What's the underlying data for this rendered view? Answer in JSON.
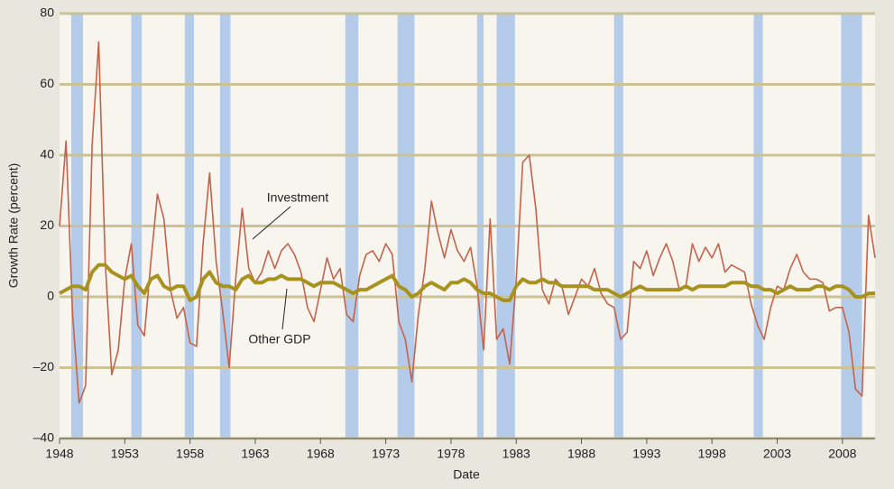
{
  "chart_data": {
    "type": "line",
    "xlabel": "Date",
    "ylabel": "Growth Rate (percent)",
    "xlim": [
      1948,
      2010.5
    ],
    "ylim": [
      -40,
      80
    ],
    "xticks": [
      1948,
      1953,
      1958,
      1963,
      1968,
      1973,
      1978,
      1983,
      1988,
      1993,
      1998,
      2003,
      2008
    ],
    "yticks": [
      {
        "value": -40,
        "label": "–40"
      },
      {
        "value": -20,
        "label": "–20"
      },
      0,
      20,
      40,
      60,
      80
    ],
    "grid": true,
    "recessions": [
      [
        1948.9,
        1949.8
      ],
      [
        1953.5,
        1954.3
      ],
      [
        1957.6,
        1958.3
      ],
      [
        1960.3,
        1961.1
      ],
      [
        1969.9,
        1970.9
      ],
      [
        1973.9,
        1975.2
      ],
      [
        1980.0,
        1980.5
      ],
      [
        1981.5,
        1982.9
      ],
      [
        1990.5,
        1991.2
      ],
      [
        2001.2,
        2001.9
      ],
      [
        2007.9,
        2009.5
      ]
    ],
    "recession_color": "#b4cce9",
    "x": [
      1948.0,
      1948.5,
      1949.0,
      1949.5,
      1950.0,
      1950.5,
      1951.0,
      1951.5,
      1952.0,
      1952.5,
      1953.0,
      1953.5,
      1954.0,
      1954.5,
      1955.0,
      1955.5,
      1956.0,
      1956.5,
      1957.0,
      1957.5,
      1958.0,
      1958.5,
      1959.0,
      1959.5,
      1960.0,
      1960.5,
      1961.0,
      1961.5,
      1962.0,
      1962.5,
      1963.0,
      1963.5,
      1964.0,
      1964.5,
      1965.0,
      1965.5,
      1966.0,
      1966.5,
      1967.0,
      1967.5,
      1968.0,
      1968.5,
      1969.0,
      1969.5,
      1970.0,
      1970.5,
      1971.0,
      1971.5,
      1972.0,
      1972.5,
      1973.0,
      1973.5,
      1974.0,
      1974.5,
      1975.0,
      1975.5,
      1976.0,
      1976.5,
      1977.0,
      1977.5,
      1978.0,
      1978.5,
      1979.0,
      1979.5,
      1980.0,
      1980.5,
      1981.0,
      1981.5,
      1982.0,
      1982.5,
      1983.0,
      1983.5,
      1984.0,
      1984.5,
      1985.0,
      1985.5,
      1986.0,
      1986.5,
      1987.0,
      1987.5,
      1988.0,
      1988.5,
      1989.0,
      1989.5,
      1990.0,
      1990.5,
      1991.0,
      1991.5,
      1992.0,
      1992.5,
      1993.0,
      1993.5,
      1994.0,
      1994.5,
      1995.0,
      1995.5,
      1996.0,
      1996.5,
      1997.0,
      1997.5,
      1998.0,
      1998.5,
      1999.0,
      1999.5,
      2000.0,
      2000.5,
      2001.0,
      2001.5,
      2002.0,
      2002.5,
      2003.0,
      2003.5,
      2004.0,
      2004.5,
      2005.0,
      2005.5,
      2006.0,
      2006.5,
      2007.0,
      2007.5,
      2008.0,
      2008.5,
      2009.0,
      2009.5,
      2010.0,
      2010.5
    ],
    "series": [
      {
        "name": "Investment",
        "color": "#c4634b",
        "width": 1.6,
        "values": [
          20,
          44,
          -5,
          -30,
          -25,
          43,
          72,
          10,
          -22,
          -15,
          5,
          15,
          -8,
          -11,
          10,
          29,
          22,
          2,
          -6,
          -3,
          -13,
          -14,
          15,
          35,
          10,
          -4,
          -20,
          5,
          25,
          8,
          4,
          7,
          13,
          8,
          13,
          15,
          12,
          7,
          -3,
          -7,
          2,
          11,
          5,
          8,
          -5,
          -7,
          6,
          12,
          13,
          10,
          15,
          12,
          -7,
          -12,
          -24,
          -5,
          8,
          27,
          18,
          11,
          19,
          13,
          10,
          14,
          3,
          -15,
          22,
          -12,
          -9,
          -19,
          5,
          38,
          40,
          25,
          2,
          -2,
          5,
          3,
          -5,
          0,
          5,
          3,
          8,
          1,
          -2,
          -3,
          -12,
          -10,
          10,
          8,
          13,
          6,
          11,
          15,
          10,
          2,
          3,
          15,
          10,
          14,
          11,
          15,
          7,
          9,
          8,
          7,
          -2,
          -8,
          -12,
          -3,
          3,
          2,
          8,
          12,
          7,
          5,
          5,
          4,
          -4,
          -3,
          -3,
          -10,
          -26,
          -28,
          23,
          11
        ]
      },
      {
        "name": "Other GDP",
        "color": "#a8921f",
        "width": 4,
        "values": [
          1,
          2,
          3,
          3,
          2,
          7,
          9,
          9,
          7,
          6,
          5,
          6,
          3,
          1,
          5,
          6,
          3,
          2,
          3,
          3,
          -1,
          0,
          5,
          7,
          4,
          3,
          3,
          2,
          5,
          6,
          4,
          4,
          5,
          5,
          6,
          5,
          5,
          5,
          4,
          3,
          4,
          4,
          4,
          3,
          2,
          1,
          2,
          2,
          3,
          4,
          5,
          6,
          3,
          2,
          0,
          1,
          3,
          4,
          3,
          2,
          4,
          4,
          5,
          4,
          2,
          1,
          1,
          0,
          -1,
          -1,
          3,
          5,
          4,
          4,
          5,
          4,
          4,
          3,
          3,
          3,
          3,
          3,
          2,
          2,
          2,
          1,
          0,
          1,
          2,
          3,
          2,
          2,
          2,
          2,
          2,
          2,
          3,
          2,
          3,
          3,
          3,
          3,
          3,
          4,
          4,
          4,
          3,
          3,
          2,
          2,
          1,
          2,
          3,
          2,
          2,
          2,
          3,
          3,
          2,
          3,
          3,
          2,
          0,
          0,
          1,
          1
        ]
      }
    ],
    "annotations": [
      {
        "text": "Investment",
        "series": 0
      },
      {
        "text": "Other GDP",
        "series": 1
      }
    ]
  }
}
